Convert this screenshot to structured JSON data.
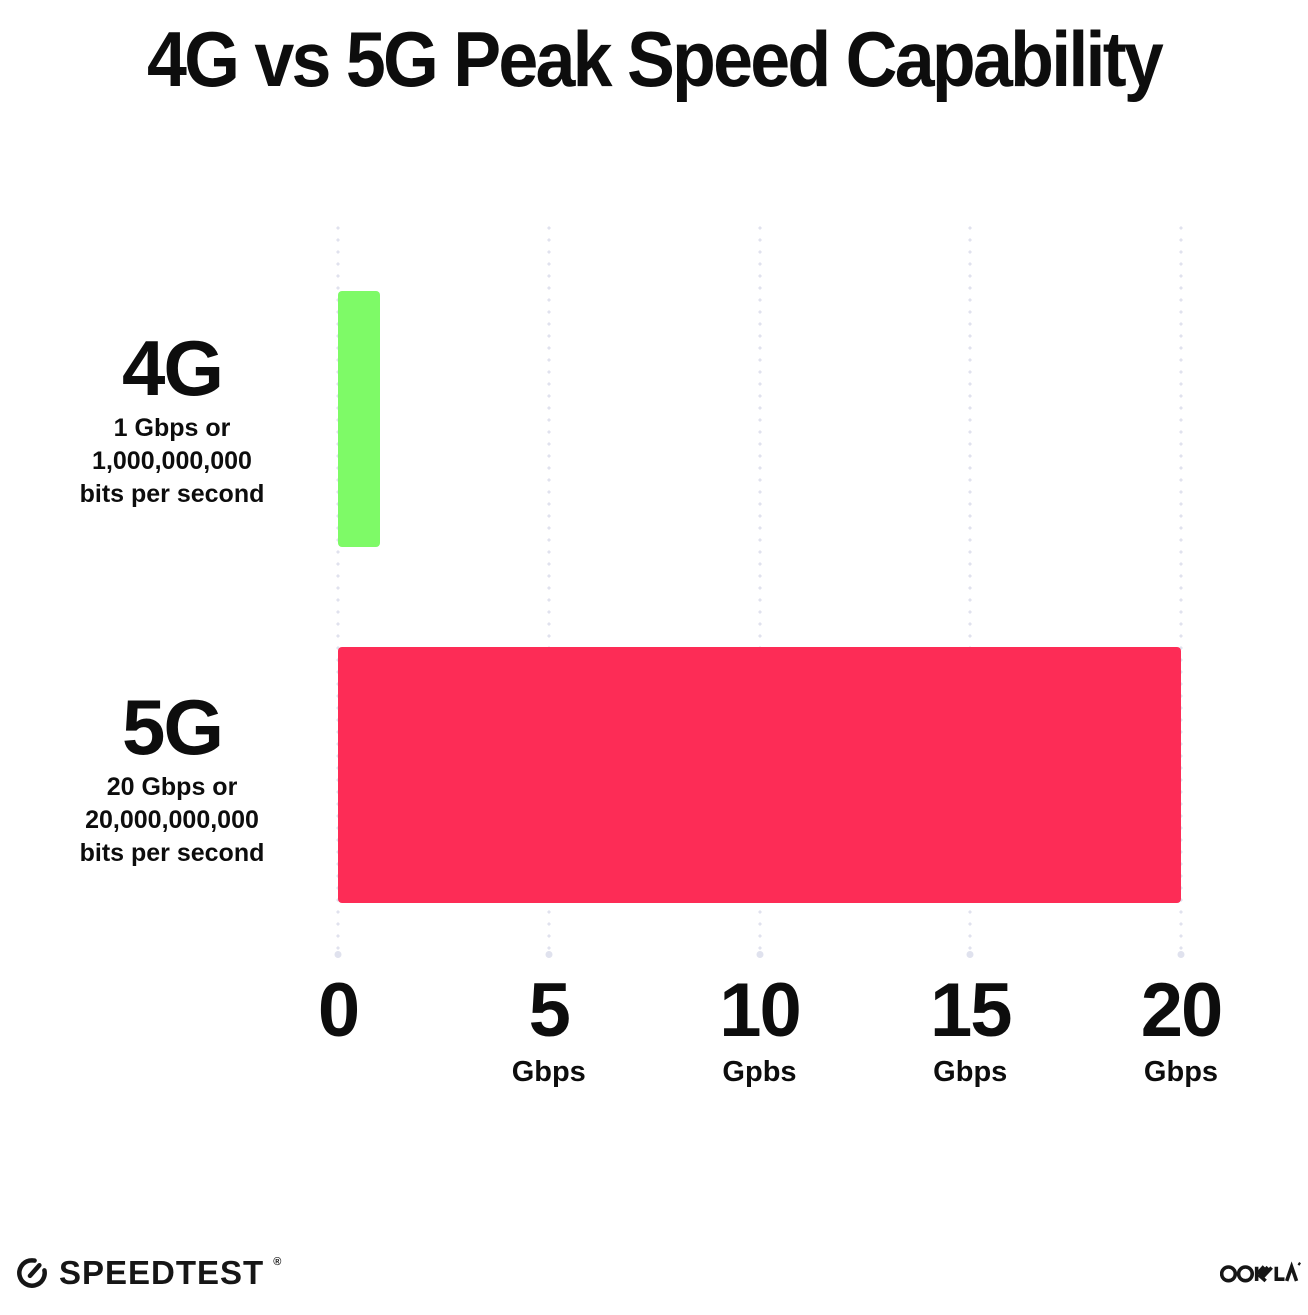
{
  "chart_data": {
    "type": "bar",
    "orientation": "horizontal",
    "title": "4G vs 5G Peak Speed Capability",
    "xlim": [
      0,
      20
    ],
    "grid": "dotted-vertical",
    "grid_color": "#e0e2ee",
    "legend": "none",
    "rows": [
      {
        "label": "4G",
        "value": 1,
        "color": "#7efa67",
        "sublines": [
          "1 Gbps or",
          "1,000,000,000",
          "bits per second"
        ]
      },
      {
        "label": "5G",
        "value": 20,
        "color": "#fd2c56",
        "sublines": [
          "20 Gbps or",
          "20,000,000,000",
          "bits per second"
        ]
      }
    ],
    "x_ticks": [
      {
        "value": 0,
        "label": "0",
        "unit": ""
      },
      {
        "value": 5,
        "label": "5",
        "unit": "Gbps"
      },
      {
        "value": 10,
        "label": "10",
        "unit": "Gpbs"
      },
      {
        "value": 15,
        "label": "15",
        "unit": "Gbps"
      },
      {
        "value": 20,
        "label": "20",
        "unit": "Gbps"
      }
    ]
  },
  "footer": {
    "speedtest_label": "SPEEDTEST",
    "speedtest_mark": "®",
    "ookla_label": "OOKLA",
    "speedtest_icon": "gauge-icon",
    "ookla_icon": "ookla-logo"
  },
  "colors": {
    "text": "#0d0d0d",
    "background": "#ffffff"
  }
}
